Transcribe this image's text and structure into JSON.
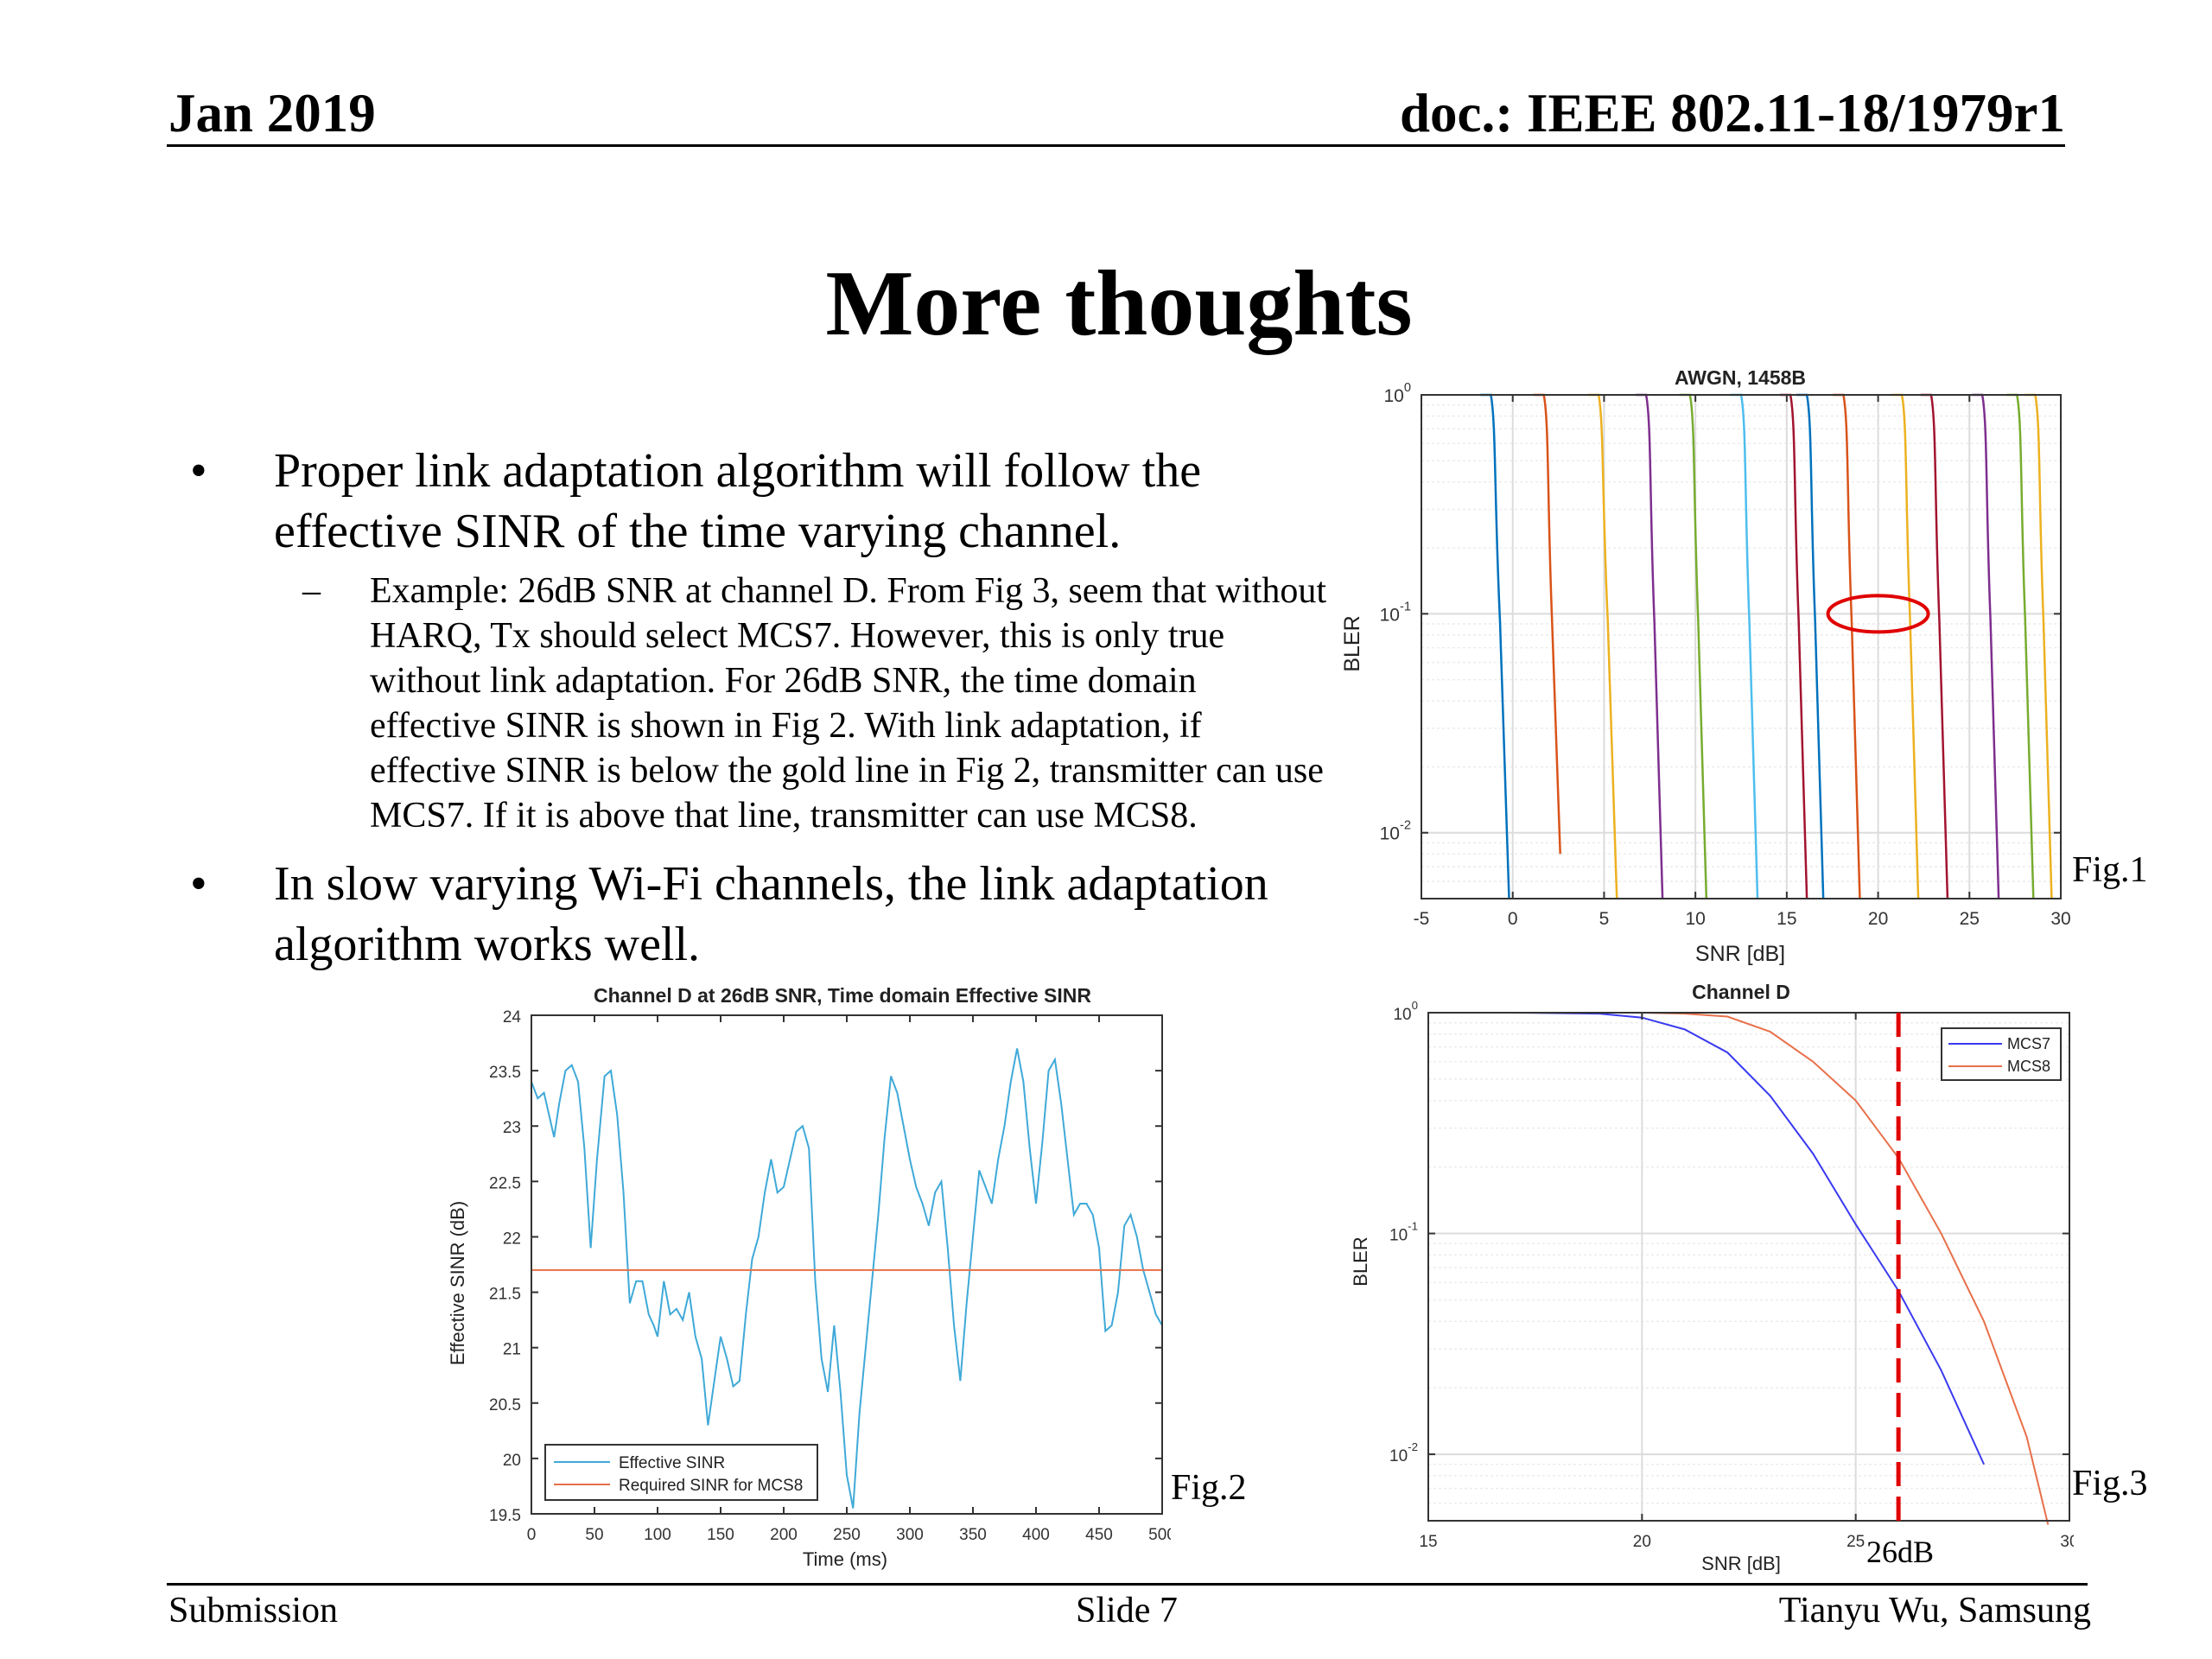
{
  "header": {
    "date": "Jan 2019",
    "doc": "doc.: IEEE 802.11-18/1979r1"
  },
  "title": "More thoughts",
  "bullets": [
    {
      "text": "Proper link adaptation algorithm will follow the effective SINR of the time varying channel.",
      "sub": [
        "Example: 26dB SNR at channel D. From Fig 3, seem that without HARQ, Tx should select MCS7. However, this is only true without link adaptation. For 26dB SNR, the time domain effective SINR is shown in Fig 2. With link adaptation, if effective SINR is below the gold line in Fig 2, transmitter can use MCS7. If it is above that line, transmitter can use MCS8."
      ]
    },
    {
      "text": "In slow varying Wi-Fi channels, the link adaptation algorithm works well.",
      "sub": []
    }
  ],
  "figure_labels": {
    "fig1": "Fig.1",
    "fig2": "Fig.2",
    "fig3": "Fig.3",
    "snr_26": "26dB"
  },
  "footer": {
    "left": "Submission",
    "center": "Slide 7",
    "right": "Tianyu Wu, Samsung"
  },
  "chart_data": [
    {
      "id": "fig1",
      "type": "line",
      "title": "AWGN, 1458B",
      "xlabel": "SNR [dB]",
      "ylabel": "BLER",
      "xlim": [
        -5,
        30
      ],
      "ylim": [
        0.005,
        1
      ],
      "y_scale": "log",
      "x_ticks": [
        -5,
        0,
        5,
        10,
        15,
        20,
        25,
        30
      ],
      "y_ticks": [
        {
          "value": 1,
          "base": "10",
          "exp": "0"
        },
        {
          "value": 0.1,
          "base": "10",
          "exp": "-1"
        },
        {
          "value": 0.01,
          "base": "10",
          "exp": "-2"
        }
      ],
      "grid": true,
      "annotation": {
        "shape": "ellipse",
        "color": "#e00000",
        "x": 20,
        "y": 0.1
      },
      "curves": [
        {
          "x_top": -1.2,
          "x_bottom": -0.2,
          "y_bottom": 0.005,
          "color": "#0072BD"
        },
        {
          "x_top": 1.7,
          "x_bottom": 2.6,
          "y_bottom": 0.008,
          "color": "#D95319"
        },
        {
          "x_top": 4.7,
          "x_bottom": 5.7,
          "y_bottom": 0.005,
          "color": "#EDB120"
        },
        {
          "x_top": 7.3,
          "x_bottom": 8.2,
          "y_bottom": 0.005,
          "color": "#7E2F8E"
        },
        {
          "x_top": 9.7,
          "x_bottom": 10.6,
          "y_bottom": 0.005,
          "color": "#77AC30"
        },
        {
          "x_top": 12.5,
          "x_bottom": 13.4,
          "y_bottom": 0.005,
          "color": "#4DBEEE"
        },
        {
          "x_top": 15.2,
          "x_bottom": 16.1,
          "y_bottom": 0.005,
          "color": "#A2142F"
        },
        {
          "x_top": 16.1,
          "x_bottom": 17.0,
          "y_bottom": 0.005,
          "color": "#0072BD"
        },
        {
          "x_top": 18.1,
          "x_bottom": 19.0,
          "y_bottom": 0.005,
          "color": "#D95319"
        },
        {
          "x_top": 21.3,
          "x_bottom": 22.2,
          "y_bottom": 0.005,
          "color": "#EDB120"
        },
        {
          "x_top": 22.9,
          "x_bottom": 23.8,
          "y_bottom": 0.005,
          "color": "#A2142F"
        },
        {
          "x_top": 25.7,
          "x_bottom": 26.6,
          "y_bottom": 0.005,
          "color": "#7E2F8E"
        },
        {
          "x_top": 27.6,
          "x_bottom": 28.5,
          "y_bottom": 0.005,
          "color": "#77AC30"
        },
        {
          "x_top": 28.6,
          "x_bottom": 29.5,
          "y_bottom": 0.005,
          "color": "#EDB120"
        }
      ]
    },
    {
      "id": "fig2",
      "type": "line",
      "title": "Channel D at 26dB SNR, Time domain Effective SINR",
      "xlabel": "Time (ms)",
      "ylabel": "Effective SINR (dB)",
      "xlim": [
        0,
        500
      ],
      "ylim": [
        19.5,
        24
      ],
      "x_ticks": [
        0,
        50,
        100,
        150,
        200,
        250,
        300,
        350,
        400,
        450,
        500
      ],
      "y_ticks": [
        19.5,
        20,
        20.5,
        21,
        21.5,
        22,
        22.5,
        23,
        23.5,
        24
      ],
      "legend_position": "bottom-left",
      "series": [
        {
          "name": "Effective SINR",
          "color": "#3FA9D8",
          "x": [
            0,
            5,
            10,
            14,
            18,
            22,
            27,
            32,
            37,
            42,
            47,
            52,
            58,
            63,
            68,
            73,
            78,
            83,
            88,
            93,
            97,
            100,
            105,
            110,
            115,
            120,
            125,
            130,
            135,
            140,
            145,
            150,
            155,
            160,
            165,
            170,
            175,
            180,
            185,
            190,
            195,
            200,
            205,
            210,
            215,
            220,
            225,
            230,
            235,
            240,
            245,
            250,
            255,
            260,
            265,
            270,
            275,
            280,
            285,
            290,
            295,
            300,
            305,
            310,
            315,
            320,
            325,
            330,
            335,
            340,
            345,
            350,
            355,
            360,
            365,
            370,
            375,
            380,
            385,
            390,
            395,
            400,
            405,
            410,
            415,
            420,
            425,
            430,
            435,
            440,
            445,
            450,
            455,
            460,
            465,
            470,
            475,
            480,
            485,
            490,
            495,
            500
          ],
          "y": [
            23.4,
            23.25,
            23.3,
            23.1,
            22.9,
            23.2,
            23.5,
            23.55,
            23.4,
            22.8,
            21.9,
            22.7,
            23.45,
            23.5,
            23.1,
            22.4,
            21.4,
            21.6,
            21.6,
            21.3,
            21.2,
            21.1,
            21.6,
            21.3,
            21.35,
            21.25,
            21.5,
            21.1,
            20.9,
            20.3,
            20.7,
            21.1,
            20.9,
            20.65,
            20.7,
            21.3,
            21.8,
            22.0,
            22.4,
            22.7,
            22.4,
            22.45,
            22.7,
            22.95,
            23.0,
            22.8,
            21.6,
            20.9,
            20.6,
            21.2,
            20.6,
            19.85,
            19.55,
            20.4,
            21.0,
            21.6,
            22.2,
            22.9,
            23.45,
            23.3,
            23.0,
            22.7,
            22.45,
            22.3,
            22.1,
            22.4,
            22.5,
            21.9,
            21.2,
            20.7,
            21.4,
            22.0,
            22.6,
            22.45,
            22.3,
            22.7,
            23.0,
            23.4,
            23.7,
            23.4,
            22.8,
            22.3,
            22.85,
            23.5,
            23.6,
            23.2,
            22.7,
            22.2,
            22.3,
            22.3,
            22.2,
            21.9,
            21.15,
            21.2,
            21.5,
            22.1,
            22.2,
            22.0,
            21.7,
            21.5,
            21.3,
            21.2
          ]
        },
        {
          "name": "Required SINR for MCS8",
          "color": "#E8704A",
          "x": [
            0,
            500
          ],
          "y": [
            21.7,
            21.7
          ]
        }
      ]
    },
    {
      "id": "fig3",
      "type": "line",
      "title": "Channel D",
      "xlabel": "SNR [dB]",
      "ylabel": "BLER",
      "xlim": [
        15,
        30
      ],
      "ylim": [
        0.005,
        1
      ],
      "y_scale": "log",
      "x_ticks": [
        15,
        20,
        25,
        30
      ],
      "y_ticks": [
        {
          "value": 1,
          "base": "10",
          "exp": "0"
        },
        {
          "value": 0.1,
          "base": "10",
          "exp": "-1"
        },
        {
          "value": 0.01,
          "base": "10",
          "exp": "-2"
        }
      ],
      "grid": true,
      "legend_position": "top-right",
      "vline": {
        "x": 26,
        "color": "#E00000"
      },
      "series": [
        {
          "name": "MCS7",
          "color": "#3A3AF0",
          "x": [
            15,
            17,
            19,
            20,
            21,
            22,
            23,
            24,
            25,
            26,
            27,
            28
          ],
          "y": [
            1,
            1,
            0.99,
            0.95,
            0.84,
            0.66,
            0.42,
            0.23,
            0.11,
            0.055,
            0.024,
            0.009
          ]
        },
        {
          "name": "MCS8",
          "color": "#E8704A",
          "x": [
            15,
            18,
            20,
            21,
            22,
            23,
            24,
            25,
            26,
            27,
            28,
            29,
            29.5
          ],
          "y": [
            1,
            1,
            1,
            0.99,
            0.96,
            0.82,
            0.6,
            0.4,
            0.22,
            0.1,
            0.04,
            0.012,
            0.0048
          ]
        }
      ]
    }
  ]
}
